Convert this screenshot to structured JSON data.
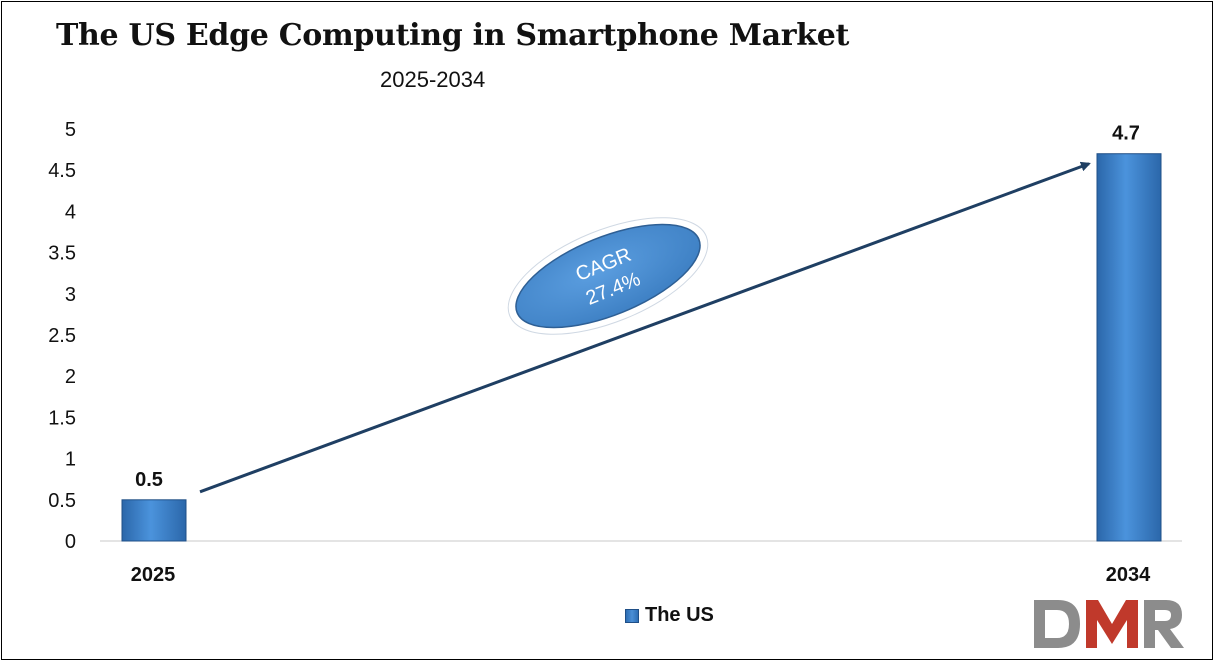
{
  "chart_data": {
    "type": "bar",
    "title": "The US Edge Computing in Smartphone Market",
    "subtitle": "2025-2034",
    "categories": [
      "2025",
      "2034"
    ],
    "series": [
      {
        "name": "The US",
        "values": [
          0.5,
          4.7
        ]
      }
    ],
    "data_labels": [
      "0.5",
      "4.7"
    ],
    "y_ticks": [
      "0",
      "0.5",
      "1",
      "1.5",
      "2",
      "2.5",
      "3",
      "3.5",
      "4",
      "4.5",
      "5"
    ],
    "ylim": [
      0,
      5
    ],
    "xlabel": "",
    "ylabel": "",
    "grid": false,
    "legend_placement": "bottom-center",
    "annotation": {
      "line1": "CAGR",
      "line2": "27.4%"
    },
    "bar_color": "#3a7dc4"
  },
  "logo": {
    "text": "DMR"
  }
}
